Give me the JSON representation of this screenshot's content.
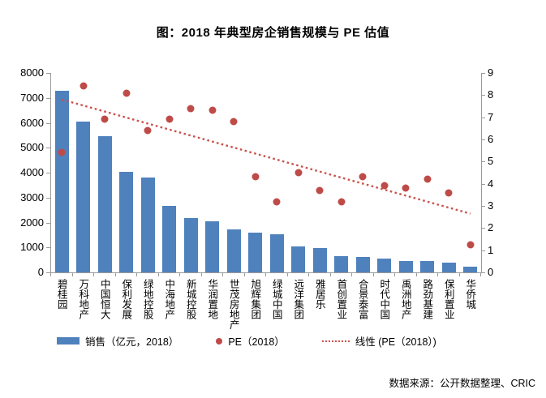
{
  "title": "图：2018 年典型房企销售规模与 PE 估值",
  "source": "数据来源：公开数据整理、CRIC",
  "colors": {
    "bar": "#4F81BD",
    "dot": "#BE4B48",
    "trend": "#C9534E",
    "axis": "#9B9B9B"
  },
  "legend": {
    "items": [
      {
        "marker": "bar-swatch",
        "label": "销售（亿元，2018）"
      },
      {
        "marker": "dot-swatch",
        "label": "PE（2018）"
      },
      {
        "marker": "dotted-line-swatch",
        "label": "线性 (PE（2018）)"
      }
    ]
  },
  "chart_data": {
    "type": "bar+scatter combo",
    "title": "图：2018 年典型房企销售规模与 PE 估值",
    "categories": [
      "碧桂园",
      "万科地产",
      "中国恒大",
      "保利发展",
      "绿地控股",
      "中海地产",
      "新城控股",
      "华润置地",
      "世茂房地产",
      "旭辉集团",
      "绿城中国",
      "远洋集团",
      "雅居乐",
      "首创置业",
      "合景泰富",
      "时代中国",
      "禹洲地产",
      "路劲基建",
      "保利置业",
      "华侨城"
    ],
    "series": [
      {
        "name": "销售（亿元，2018）",
        "type": "bar",
        "axis": "left",
        "values": [
          7280,
          6060,
          5480,
          4020,
          3790,
          2660,
          2170,
          2060,
          1720,
          1580,
          1530,
          1050,
          980,
          650,
          630,
          560,
          470,
          470,
          380,
          220
        ]
      },
      {
        "name": "PE（2018）",
        "type": "scatter",
        "axis": "right",
        "values": [
          5.4,
          8.4,
          6.9,
          8.1,
          6.4,
          6.9,
          7.4,
          7.3,
          6.8,
          4.3,
          3.2,
          4.5,
          3.7,
          3.2,
          4.3,
          3.9,
          3.8,
          4.2,
          3.6,
          1.25
        ]
      },
      {
        "name": "线性 (PE（2018）)",
        "type": "linear-trendline",
        "axis": "right",
        "start_value": 7.8,
        "end_value": 2.65
      }
    ],
    "left_axis": {
      "min": 0,
      "max": 8000,
      "step": 1000,
      "tick_labels": [
        "0",
        "1000",
        "2000",
        "3000",
        "4000",
        "5000",
        "6000",
        "7000",
        "8000"
      ]
    },
    "right_axis": {
      "min": 0,
      "max": 9,
      "step": 1,
      "tick_labels": [
        "0",
        "1",
        "2",
        "3",
        "4",
        "5",
        "6",
        "7",
        "8",
        "9"
      ]
    },
    "grid": "off",
    "legend_position": "bottom"
  }
}
